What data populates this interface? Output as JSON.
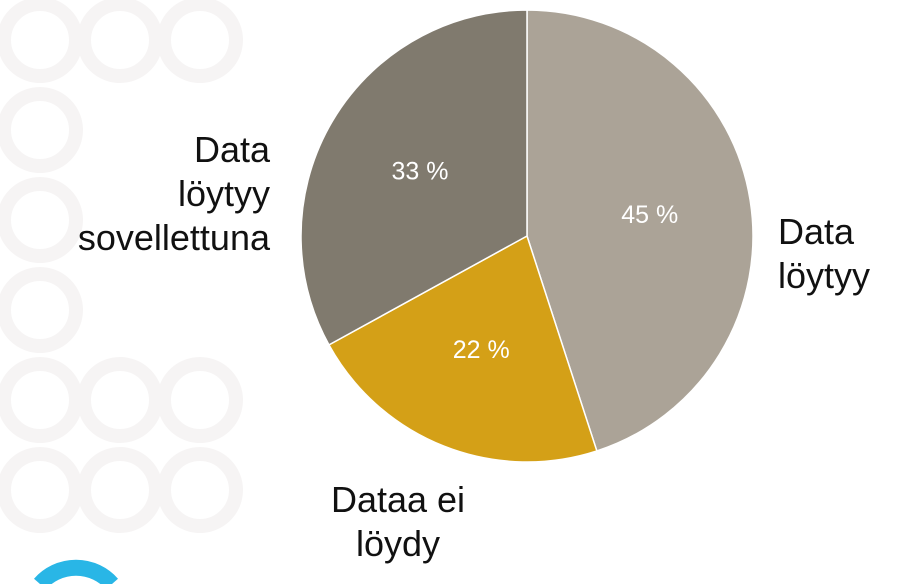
{
  "chart_data": {
    "type": "pie",
    "categories": [
      "Data\nlöytyy",
      "Dataa ei\nlöydy",
      "Data\nlöytyy\nsovellettuna"
    ],
    "values": [
      45,
      22,
      33
    ],
    "value_labels": [
      "45 %",
      "22 %",
      "33 %"
    ],
    "colors": [
      "#aba397",
      "#d4a017",
      "#807a6e"
    ]
  }
}
